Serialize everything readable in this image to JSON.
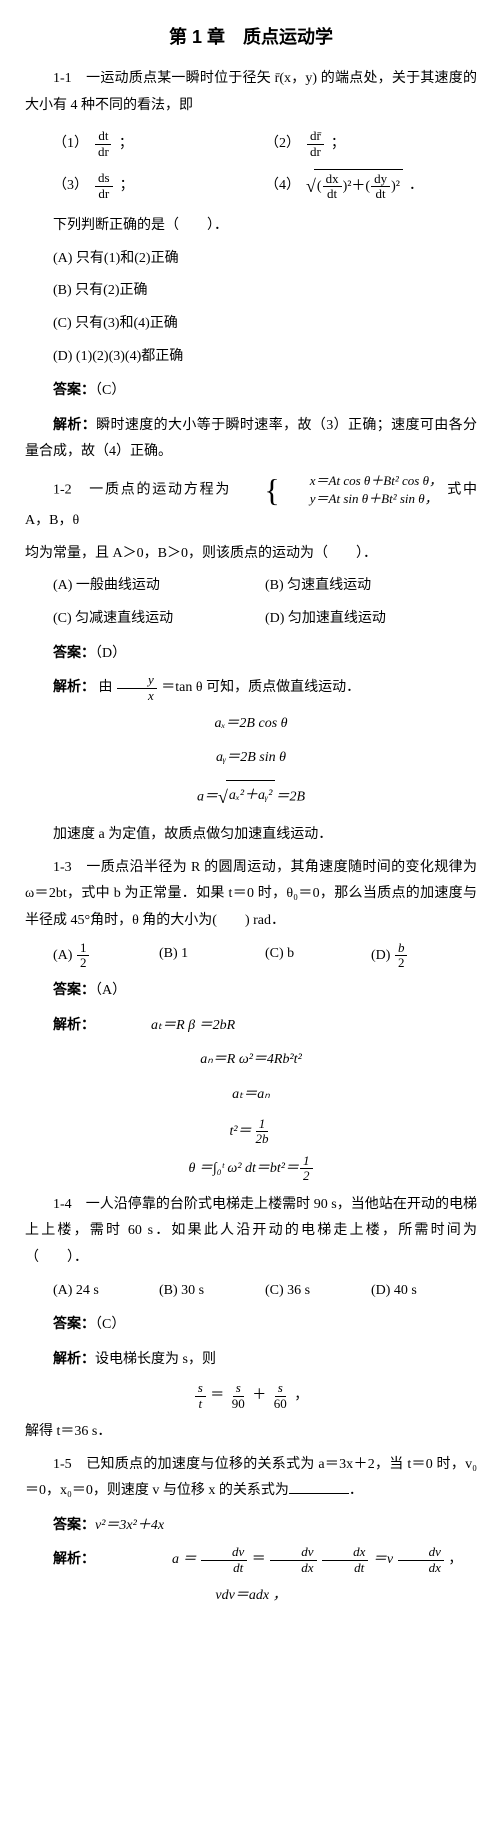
{
  "chapter_title": "第 1 章　质点运动学",
  "q1": {
    "stem": "1-1　一运动质点某一瞬时位于径矢 r̄(x，y) 的端点处，关于其速度的大小有 4 种不同的看法，即",
    "opt1_label": "（1）",
    "opt2_label": "（2）",
    "opt3_label": "（3）",
    "opt4_label": "（4）",
    "f1_num": "dt",
    "f1_den": "dr",
    "f2_num": "dr̄",
    "f2_den": "dr",
    "f3_num": "ds",
    "f3_den": "dr",
    "f4a_num": "dx",
    "f4a_den": "dt",
    "f4b_num": "dy",
    "f4b_den": "dt",
    "semicolon": "；",
    "period": "．",
    "judge": "下列判断正确的是（　　）．",
    "choice_a": "(A) 只有(1)和(2)正确",
    "choice_b": "(B) 只有(2)正确",
    "choice_c": "(C) 只有(3)和(4)正确",
    "choice_d": "(D) (1)(2)(3)(4)都正确",
    "answer_label": "答案：",
    "answer": "（C）",
    "analysis_label": "解析：",
    "analysis": "瞬时速度的大小等于瞬时速率，故（3）正确；速度可由各分量合成，故（4）正确。"
  },
  "q2": {
    "stem_a": "1-2　一质点的运动方程为",
    "brace_line1": "x＝At cos θ＋Bt² cos θ，",
    "brace_line2": "y＝At sin θ＋Bt² sin θ，",
    "stem_b": "式中 A，B，θ",
    "stem_c": "均为常量，且 A＞0，B＞0，则该质点的运动为（　　）．",
    "choice_a": "(A) 一般曲线运动",
    "choice_b": "(B) 匀速直线运动",
    "choice_c": "(C) 匀减速直线运动",
    "choice_d": "(D) 匀加速直线运动",
    "answer_label": "答案：",
    "answer": "（D）",
    "analysis_label": "解析：",
    "analysis_a": "由",
    "frac_num": "y",
    "frac_den": "x",
    "analysis_b": "＝tan θ 可知，质点做直线运动．",
    "eq1": "aₓ＝2B cos θ",
    "eq2": "aᵧ＝2B sin θ",
    "eq3_a": "a＝",
    "eq3_sqrt": "aₓ²＋aᵧ²",
    "eq3_b": "＝2B",
    "conclusion": "加速度 a 为定值，故质点做匀加速直线运动．"
  },
  "q3": {
    "stem": "1-3　一质点沿半径为 R 的圆周运动，其角速度随时间的变化规律为 ω＝2bt，式中 b 为正常量．如果 t＝0 时，θ₀＝0，那么当质点的加速度与半径成 45°角时，θ 角的大小为(　　) rad．",
    "choice_a_label": "(A)",
    "choice_a_num": "1",
    "choice_a_den": "2",
    "choice_b": "(B) 1",
    "choice_c": "(C) b",
    "choice_d_label": "(D)",
    "choice_d_num": "b",
    "choice_d_den": "2",
    "answer_label": "答案：",
    "answer": "（A）",
    "analysis_label": "解析：",
    "eq1": "aₜ＝R β ＝2bR",
    "eq2": "aₙ＝R ω²＝4Rb²t²",
    "eq3": "aₜ＝aₙ",
    "eq4_lhs": "t²＝",
    "eq4_num": "1",
    "eq4_den": "2b",
    "eq5_a": "θ ＝∫₀ᵗ ω² dt＝bt²＝",
    "eq5_num": "1",
    "eq5_den": "2"
  },
  "q4": {
    "stem": "1-4　一人沿停靠的台阶式电梯走上楼需时 90 s，当他站在开动的电梯上上楼，需时 60 s．如果此人沿开动的电梯走上楼，所需时间为（　　）．",
    "choice_a": "(A) 24 s",
    "choice_b": "(B) 30 s",
    "choice_c": "(C) 36 s",
    "choice_d": "(D) 40 s",
    "answer_label": "答案：",
    "answer": "（C）",
    "analysis_label": "解析：",
    "analysis_a": "设电梯长度为 s，则",
    "eq_l_num": "s",
    "eq_l_den": "t",
    "eq_eq": "＝",
    "eq_m_num": "s",
    "eq_m_den": "90",
    "eq_plus": "＋",
    "eq_r_num": "s",
    "eq_r_den": "60",
    "eq_comma": "，",
    "conclusion": "解得 t＝36 s．"
  },
  "q5": {
    "stem_a": "1-5　已知质点的加速度与位移的关系式为 a＝3x＋2，当 t＝0 时，v₀＝0，x₀＝0，则速度 v 与位移 x 的关系式为",
    "stem_b": "．",
    "answer_label": "答案：",
    "answer": "v²＝3x²＋4x",
    "analysis_label": "解析：",
    "eq1_lhs": "a ＝",
    "eq1_f1_num": "dv",
    "eq1_f1_den": "dt",
    "eq1_eq1": "＝",
    "eq1_f2_num": "dv",
    "eq1_f2_den": "dx",
    "eq1_f3_num": "dx",
    "eq1_f3_den": "dt",
    "eq1_eq2": "＝v",
    "eq1_f4_num": "dv",
    "eq1_f4_den": "dx",
    "eq1_comma": "，",
    "eq2": "vdv＝adx ，"
  }
}
